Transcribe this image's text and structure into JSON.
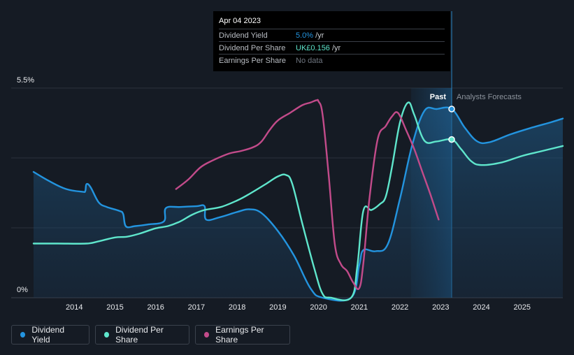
{
  "chart_data": {
    "type": "line",
    "y_axis": {
      "top_label": "5.5%",
      "bottom_label": "0%",
      "ylim": [
        0,
        5.5
      ]
    },
    "x_axis": {
      "ticks": [
        "2014",
        "2015",
        "2016",
        "2017",
        "2018",
        "2019",
        "2020",
        "2021",
        "2022",
        "2023",
        "2024",
        "2025"
      ],
      "xlim": [
        2013.0,
        2026.0
      ]
    },
    "regions": {
      "past_label": "Past",
      "forecast_label": "Analysts Forecasts",
      "divider_year": 2023.27,
      "band_start": 2022.27
    },
    "series": [
      {
        "name": "Dividend Yield",
        "color": "#2394df",
        "fill": true,
        "points": [
          [
            2013.0,
            3.3
          ],
          [
            2013.4,
            3.05
          ],
          [
            2013.8,
            2.85
          ],
          [
            2014.2,
            2.78
          ],
          [
            2014.27,
            2.8
          ],
          [
            2014.3,
            2.98
          ],
          [
            2014.4,
            2.9
          ],
          [
            2014.6,
            2.5
          ],
          [
            2014.8,
            2.38
          ],
          [
            2015.1,
            2.28
          ],
          [
            2015.2,
            2.2
          ],
          [
            2015.27,
            1.87
          ],
          [
            2015.5,
            1.88
          ],
          [
            2015.8,
            1.92
          ],
          [
            2016.2,
            2.0
          ],
          [
            2016.25,
            2.35
          ],
          [
            2016.6,
            2.38
          ],
          [
            2017.0,
            2.4
          ],
          [
            2017.2,
            2.4
          ],
          [
            2017.24,
            2.05
          ],
          [
            2017.6,
            2.12
          ],
          [
            2018.0,
            2.25
          ],
          [
            2018.3,
            2.32
          ],
          [
            2018.6,
            2.22
          ],
          [
            2019.0,
            1.75
          ],
          [
            2019.4,
            1.1
          ],
          [
            2019.8,
            0.25
          ],
          [
            2020.1,
            0.0
          ],
          [
            2020.8,
            0.0
          ],
          [
            2021.0,
            0.85
          ],
          [
            2021.1,
            1.25
          ],
          [
            2021.4,
            1.22
          ],
          [
            2021.7,
            1.4
          ],
          [
            2022.0,
            2.6
          ],
          [
            2022.3,
            4.0
          ],
          [
            2022.6,
            4.9
          ],
          [
            2022.9,
            4.95
          ],
          [
            2023.27,
            4.95
          ],
          [
            2023.6,
            4.45
          ],
          [
            2023.9,
            4.1
          ],
          [
            2024.2,
            4.08
          ],
          [
            2024.7,
            4.28
          ],
          [
            2025.2,
            4.45
          ],
          [
            2025.7,
            4.6
          ],
          [
            2026.0,
            4.7
          ]
        ]
      },
      {
        "name": "Dividend Per Share",
        "color": "#5fe6cc",
        "fill": false,
        "points": [
          [
            2013.0,
            1.42
          ],
          [
            2013.6,
            1.42
          ],
          [
            2014.3,
            1.42
          ],
          [
            2014.6,
            1.48
          ],
          [
            2015.0,
            1.58
          ],
          [
            2015.3,
            1.6
          ],
          [
            2015.6,
            1.68
          ],
          [
            2016.0,
            1.82
          ],
          [
            2016.3,
            1.88
          ],
          [
            2016.6,
            2.0
          ],
          [
            2016.9,
            2.18
          ],
          [
            2017.2,
            2.3
          ],
          [
            2017.6,
            2.38
          ],
          [
            2018.0,
            2.55
          ],
          [
            2018.3,
            2.72
          ],
          [
            2018.7,
            2.98
          ],
          [
            2019.0,
            3.18
          ],
          [
            2019.2,
            3.22
          ],
          [
            2019.35,
            3.0
          ],
          [
            2019.6,
            1.95
          ],
          [
            2019.9,
            0.75
          ],
          [
            2020.1,
            0.1
          ],
          [
            2020.3,
            0.0
          ],
          [
            2020.8,
            0.0
          ],
          [
            2020.95,
            0.8
          ],
          [
            2021.1,
            2.28
          ],
          [
            2021.3,
            2.3
          ],
          [
            2021.5,
            2.45
          ],
          [
            2021.65,
            2.65
          ],
          [
            2021.8,
            3.4
          ],
          [
            2022.0,
            4.6
          ],
          [
            2022.2,
            5.12
          ],
          [
            2022.35,
            4.8
          ],
          [
            2022.6,
            4.12
          ],
          [
            2022.9,
            4.1
          ],
          [
            2023.27,
            4.15
          ],
          [
            2023.5,
            3.9
          ],
          [
            2023.75,
            3.58
          ],
          [
            2024.0,
            3.48
          ],
          [
            2024.5,
            3.55
          ],
          [
            2025.0,
            3.72
          ],
          [
            2025.5,
            3.85
          ],
          [
            2026.0,
            3.98
          ]
        ]
      },
      {
        "name": "Earnings Per Share",
        "color": "#c24b8a",
        "fill": false,
        "points": [
          [
            2016.5,
            2.85
          ],
          [
            2016.8,
            3.1
          ],
          [
            2017.1,
            3.42
          ],
          [
            2017.4,
            3.6
          ],
          [
            2017.8,
            3.78
          ],
          [
            2018.1,
            3.85
          ],
          [
            2018.4,
            3.95
          ],
          [
            2018.6,
            4.1
          ],
          [
            2018.8,
            4.4
          ],
          [
            2019.0,
            4.65
          ],
          [
            2019.3,
            4.85
          ],
          [
            2019.6,
            5.05
          ],
          [
            2019.8,
            5.12
          ],
          [
            2019.95,
            5.18
          ],
          [
            2020.0,
            5.15
          ],
          [
            2020.1,
            4.8
          ],
          [
            2020.25,
            3.2
          ],
          [
            2020.4,
            1.4
          ],
          [
            2020.55,
            0.88
          ],
          [
            2020.7,
            0.7
          ],
          [
            2020.85,
            0.4
          ],
          [
            2021.0,
            0.25
          ],
          [
            2021.1,
            0.9
          ],
          [
            2021.25,
            2.6
          ],
          [
            2021.45,
            4.15
          ],
          [
            2021.65,
            4.5
          ],
          [
            2021.8,
            4.75
          ],
          [
            2021.95,
            4.85
          ],
          [
            2022.15,
            4.4
          ],
          [
            2022.35,
            3.9
          ],
          [
            2022.55,
            3.3
          ],
          [
            2022.75,
            2.7
          ],
          [
            2022.95,
            2.05
          ]
        ]
      }
    ],
    "markers": [
      {
        "series": "Dividend Yield",
        "x": 2023.27,
        "y": 4.95
      },
      {
        "series": "Dividend Per Share",
        "x": 2023.27,
        "y": 4.15
      }
    ]
  },
  "tooltip": {
    "date": "Apr 04 2023",
    "rows": [
      {
        "label": "Dividend Yield",
        "value": "5.0%",
        "unit": " /yr",
        "color": "#2394df"
      },
      {
        "label": "Dividend Per Share",
        "value": "UK£0.156",
        "unit": " /yr",
        "color": "#5fe6cc"
      },
      {
        "label": "Earnings Per Share",
        "value": "No data",
        "unit": "",
        "color": "#6f7680"
      }
    ]
  },
  "legend": [
    {
      "label": "Dividend Yield",
      "color": "#2394df"
    },
    {
      "label": "Dividend Per Share",
      "color": "#5fe6cc"
    },
    {
      "label": "Earnings Per Share",
      "color": "#c24b8a"
    }
  ]
}
